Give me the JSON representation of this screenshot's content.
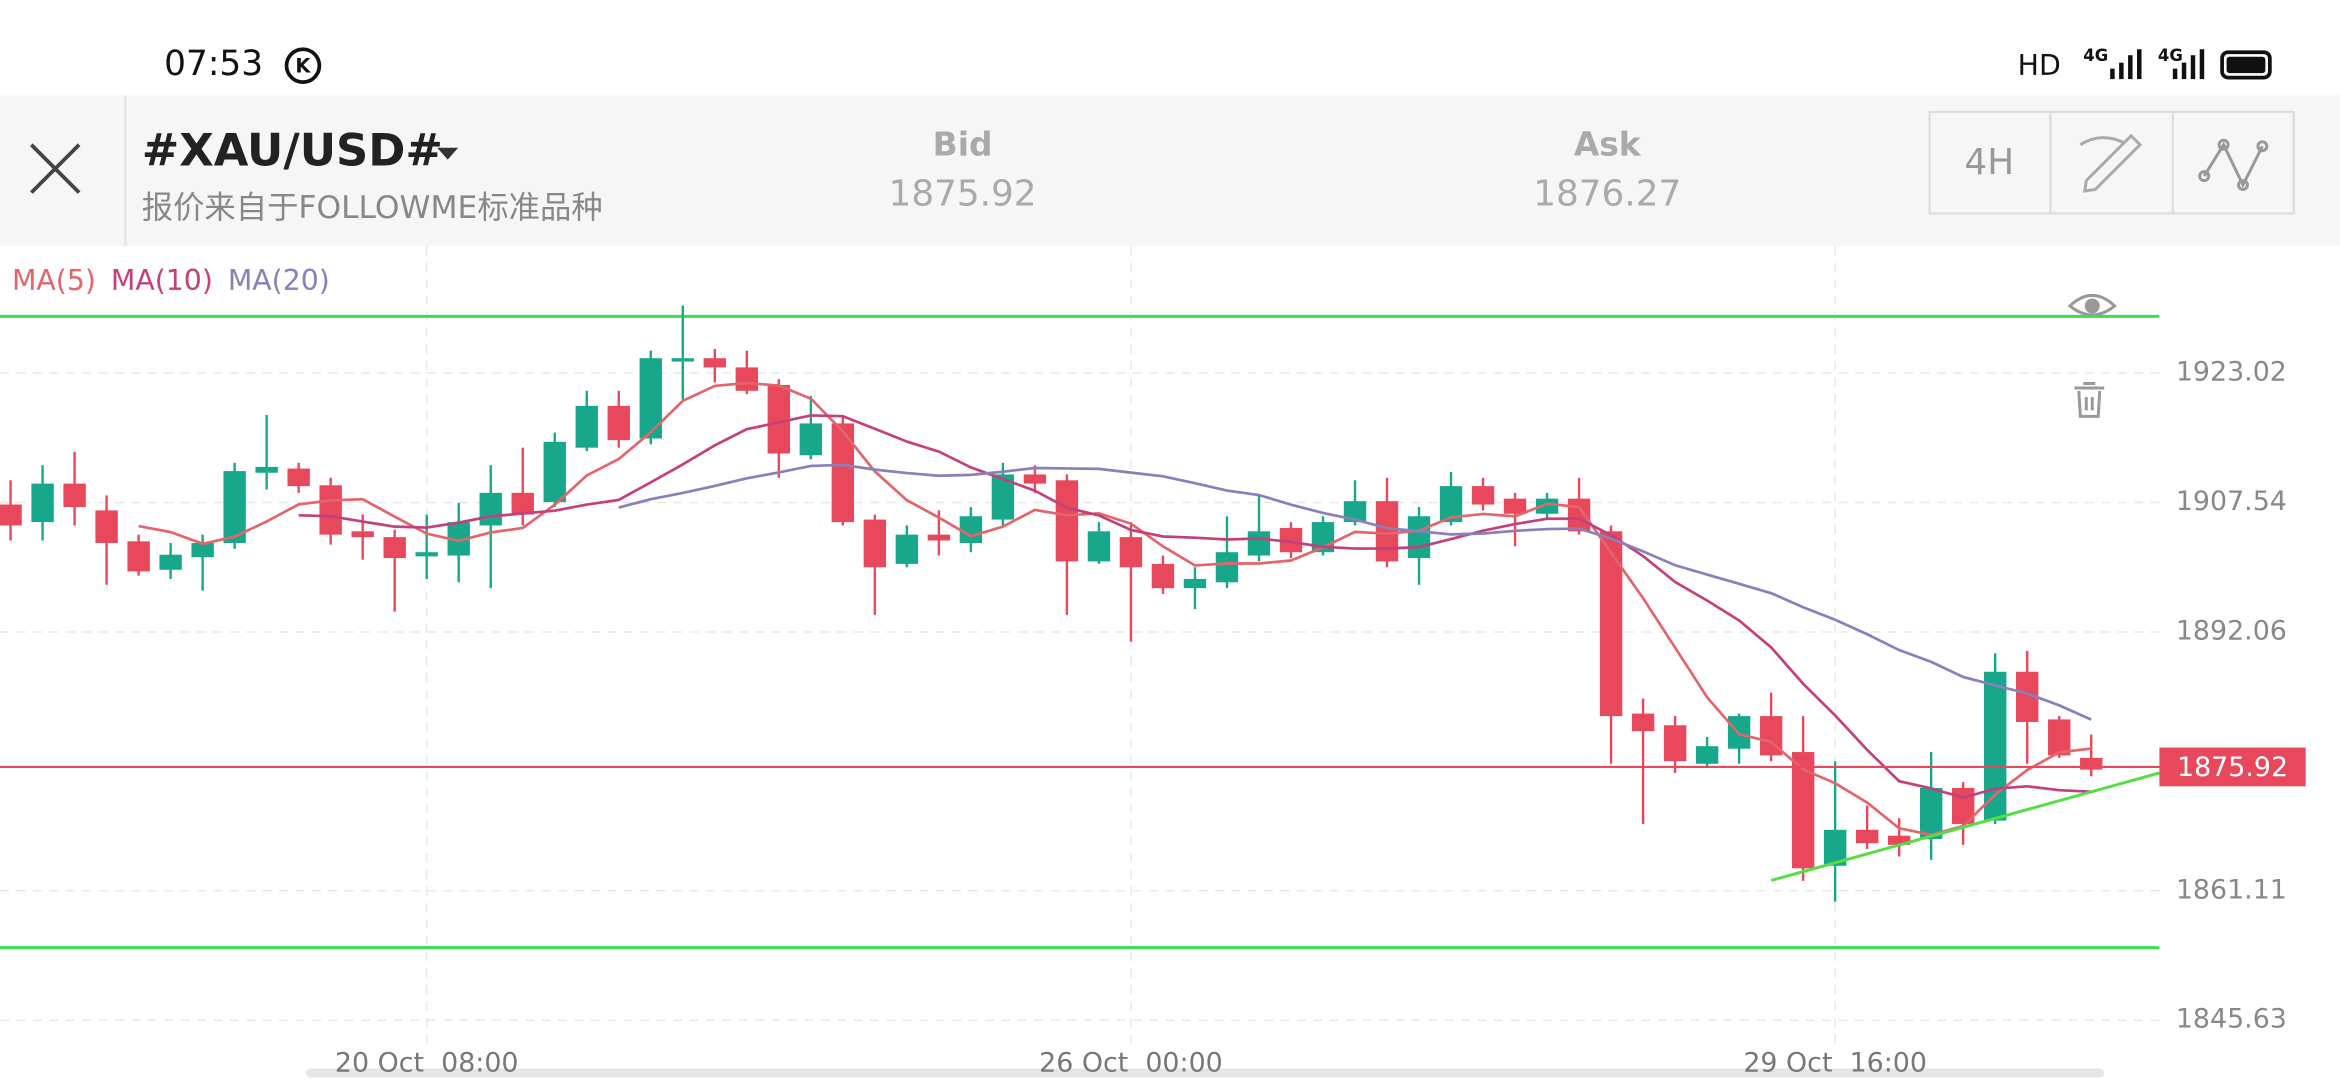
{
  "status_bar": {
    "time": "07:53",
    "icons": [
      "HD",
      "4G",
      "4G"
    ]
  },
  "header": {
    "symbol": "#XAU/USD#",
    "subtitle": "报价来自于FOLLOWME标准品种",
    "bid_label": "Bid",
    "bid": "1875.92",
    "ask_label": "Ask",
    "ask": "1876.27",
    "timeframe": "4H"
  },
  "chart_data": {
    "type": "candlestick",
    "up_color": "#17a88b",
    "down_color": "#e8485b",
    "open": [
      1907.3,
      1905.2,
      1909.8,
      1906.6,
      1902.9,
      1899.5,
      1901.0,
      1902.7,
      1911.1,
      1911.6,
      1909.6,
      1904.1,
      1903.4,
      1901.1,
      1901.2,
      1904.8,
      1908.7,
      1907.6,
      1914.1,
      1919.1,
      1915.2,
      1924.4,
      1924.8,
      1923.7,
      1921.6,
      1913.2,
      1917.0,
      1905.5,
      1900.2,
      1903.7,
      1902.7,
      1905.5,
      1910.9,
      1910.2,
      1900.5,
      1903.4,
      1900.2,
      1897.3,
      1898.0,
      1901.2,
      1904.5,
      1901.6,
      1905.2,
      1907.7,
      1900.9,
      1905.2,
      1909.5,
      1908.0,
      1906.2,
      1908.0,
      1904.1,
      1882.3,
      1880.9,
      1876.3,
      1878.1,
      1882.0,
      1877.7,
      1864.1,
      1868.4,
      1867.7,
      1867.3,
      1873.4,
      1869.5,
      1887.3,
      1881.6,
      1877.0
    ],
    "high": [
      1910.2,
      1912.0,
      1913.6,
      1908.4,
      1903.7,
      1902.7,
      1903.7,
      1912.3,
      1918.0,
      1912.3,
      1910.5,
      1906.1,
      1904.3,
      1906.1,
      1907.5,
      1912.0,
      1914.1,
      1915.9,
      1920.9,
      1920.9,
      1925.7,
      1931.1,
      1925.9,
      1925.7,
      1922.3,
      1920.3,
      1918.0,
      1906.1,
      1904.8,
      1906.6,
      1907.0,
      1912.3,
      1912.0,
      1910.9,
      1905.2,
      1905.2,
      1901.2,
      1899.8,
      1905.9,
      1908.4,
      1905.2,
      1905.9,
      1910.2,
      1910.5,
      1907.0,
      1911.2,
      1910.5,
      1908.7,
      1908.7,
      1910.5,
      1904.8,
      1884.1,
      1882.0,
      1879.5,
      1882.3,
      1884.8,
      1882.0,
      1876.6,
      1871.3,
      1869.8,
      1877.7,
      1874.1,
      1889.5,
      1889.8,
      1882.0,
      1879.8
    ],
    "low": [
      1903.0,
      1903.0,
      1904.8,
      1897.7,
      1898.8,
      1898.4,
      1897.0,
      1902.0,
      1909.1,
      1908.7,
      1902.5,
      1900.7,
      1894.5,
      1898.4,
      1898.0,
      1897.3,
      1904.8,
      1907.0,
      1913.7,
      1914.1,
      1914.5,
      1919.8,
      1921.9,
      1920.5,
      1910.5,
      1912.7,
      1904.8,
      1894.1,
      1899.8,
      1901.2,
      1901.6,
      1904.8,
      1908.7,
      1894.1,
      1900.2,
      1890.9,
      1896.6,
      1894.8,
      1897.3,
      1900.5,
      1900.9,
      1901.2,
      1904.8,
      1899.8,
      1897.7,
      1904.8,
      1906.6,
      1902.3,
      1905.5,
      1903.7,
      1876.3,
      1869.1,
      1875.2,
      1875.9,
      1876.3,
      1876.6,
      1862.3,
      1859.8,
      1866.1,
      1865.2,
      1864.8,
      1866.6,
      1869.1,
      1876.3,
      1877.0,
      1874.8
    ],
    "close": [
      1904.8,
      1909.8,
      1907.0,
      1902.7,
      1899.3,
      1901.3,
      1902.7,
      1911.3,
      1911.8,
      1909.5,
      1903.7,
      1903.4,
      1900.9,
      1901.6,
      1905.2,
      1908.7,
      1906.1,
      1914.8,
      1919.1,
      1915.0,
      1924.8,
      1924.8,
      1923.7,
      1920.9,
      1913.4,
      1917.0,
      1905.2,
      1899.8,
      1903.7,
      1903.0,
      1905.9,
      1910.9,
      1909.8,
      1900.5,
      1904.1,
      1899.8,
      1897.3,
      1898.4,
      1901.6,
      1904.1,
      1901.6,
      1905.2,
      1907.7,
      1900.5,
      1905.9,
      1909.5,
      1907.3,
      1906.2,
      1908.0,
      1904.1,
      1882.0,
      1880.2,
      1876.6,
      1878.4,
      1882.0,
      1877.3,
      1863.8,
      1868.4,
      1866.8,
      1866.6,
      1873.4,
      1869.1,
      1887.3,
      1881.3,
      1877.3,
      1875.6
    ],
    "ma": [
      {
        "name": "MA(5)",
        "period": 5,
        "color": "#e4646c"
      },
      {
        "name": "MA(10)",
        "period": 10,
        "color": "#c2407c"
      },
      {
        "name": "MA(20)",
        "period": 20,
        "color": "#8a7fba"
      }
    ],
    "xlim": [
      -0.33,
      67.13
    ],
    "xticks": [
      {
        "value": 13,
        "label": "20 Oct  08:00"
      },
      {
        "value": 35,
        "label": "26 Oct  00:00"
      },
      {
        "value": 57,
        "label": "29 Oct  16:00"
      }
    ],
    "ylim": [
      1842.71,
      1938.19
    ],
    "yticks": [
      1845.63,
      1861.11,
      1892.06,
      1907.54,
      1923.02
    ],
    "grid": true,
    "last_price": 1875.92,
    "last_price_label": "1875.92",
    "last_price_color": "#e8485b",
    "levels": [
      1929.8,
      1854.31
    ],
    "level_color": "#3ddc55",
    "trendline": {
      "x": [
        55,
        67.13
      ],
      "y": [
        1862.34,
        1875.2
      ],
      "color": "#55dd44"
    }
  }
}
